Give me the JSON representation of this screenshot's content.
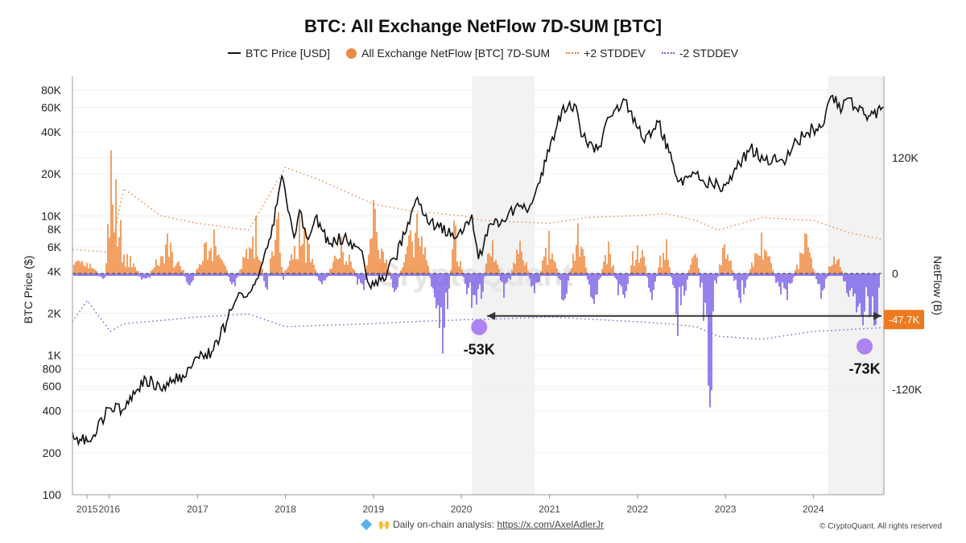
{
  "chart_data": {
    "type": "line",
    "title": "BTC: All Exchange NetFlow 7D-SUM [BTC]",
    "y_left_label": "BTC Price ($)",
    "y_right_label": "NetFlow (B)",
    "y_left_scale": "log",
    "y_left_range": [
      100,
      100000
    ],
    "y_right_range": [
      -200000,
      180000
    ],
    "x_range": [
      "2015-08-01",
      "2024-10-20"
    ],
    "y_left_ticks": [
      "80K",
      "60K",
      "40K",
      "20K",
      "10K",
      "8K",
      "6K",
      "4K",
      "2K",
      "1K",
      "800",
      "600",
      "400",
      "200",
      "100"
    ],
    "y_left_tick_values": [
      80000,
      60000,
      40000,
      20000,
      10000,
      8000,
      6000,
      4000,
      2000,
      1000,
      800,
      600,
      400,
      200,
      100
    ],
    "y_right_ticks": [
      "120K",
      "0",
      "-120K"
    ],
    "y_right_tick_values": [
      120000,
      0,
      -120000
    ],
    "x_ticks": [
      "2015",
      "2016",
      "2017",
      "2018",
      "2019",
      "2020",
      "2021",
      "2022",
      "2023",
      "2024"
    ],
    "x_tick_dates": [
      "2015-10-01",
      "2016-01-01",
      "2017-01-01",
      "2018-01-01",
      "2019-01-01",
      "2020-01-01",
      "2021-01-01",
      "2022-01-01",
      "2023-01-01",
      "2024-01-01"
    ],
    "grid": true,
    "legend_position": "top",
    "series": [
      {
        "name": "BTC Price [USD]",
        "type": "line",
        "axis": "left",
        "color": "#111111",
        "x": [
          "2015-08-01",
          "2015-09-01",
          "2015-10-15",
          "2016-01-01",
          "2016-03-01",
          "2016-06-01",
          "2016-08-01",
          "2016-11-01",
          "2017-01-01",
          "2017-03-01",
          "2017-05-01",
          "2017-06-15",
          "2017-08-01",
          "2017-09-15",
          "2017-11-01",
          "2017-12-17",
          "2018-02-06",
          "2018-03-01",
          "2018-04-06",
          "2018-05-05",
          "2018-07-01",
          "2018-09-01",
          "2018-11-15",
          "2018-12-15",
          "2019-02-01",
          "2019-04-02",
          "2019-06-26",
          "2019-08-01",
          "2019-10-01",
          "2019-12-15",
          "2020-02-14",
          "2020-03-12",
          "2020-05-01",
          "2020-07-01",
          "2020-08-15",
          "2020-10-01",
          "2020-11-15",
          "2020-12-31",
          "2021-02-21",
          "2021-04-14",
          "2021-05-20",
          "2021-07-20",
          "2021-09-07",
          "2021-11-10",
          "2022-01-24",
          "2022-03-29",
          "2022-05-12",
          "2022-06-18",
          "2022-09-01",
          "2022-11-10",
          "2023-01-01",
          "2023-03-01",
          "2023-04-14",
          "2023-06-15",
          "2023-09-11",
          "2023-10-24",
          "2023-12-31",
          "2024-02-01",
          "2024-03-14",
          "2024-05-01",
          "2024-06-01",
          "2024-07-05",
          "2024-08-05",
          "2024-09-06",
          "2024-10-20"
        ],
        "y": [
          280,
          250,
          240,
          420,
          410,
          680,
          570,
          720,
          970,
          1060,
          1700,
          2600,
          2800,
          3900,
          7000,
          19500,
          7000,
          11000,
          6800,
          9800,
          6300,
          7000,
          5600,
          3200,
          3450,
          4900,
          13000,
          10000,
          8300,
          7100,
          10200,
          4900,
          8800,
          9100,
          11800,
          10600,
          17000,
          29000,
          57000,
          63500,
          37000,
          29800,
          51000,
          68000,
          35000,
          47000,
          28500,
          17600,
          20000,
          16500,
          16600,
          23500,
          30400,
          25000,
          25100,
          34500,
          42300,
          43000,
          72000,
          59000,
          70000,
          56000,
          53000,
          54000,
          60000
        ]
      },
      {
        "name": "All Exchange NetFlow [BTC] 7D-SUM",
        "type": "area",
        "axis": "right",
        "color_positive": "#f0883d",
        "color_negative": "#7b61e8",
        "x": [
          "2015-10-01",
          "2015-12-15",
          "2016-01-05",
          "2016-03-01",
          "2016-06-01",
          "2016-09-01",
          "2016-12-01",
          "2017-03-01",
          "2017-06-01",
          "2017-09-01",
          "2017-10-15",
          "2017-12-01",
          "2017-12-20",
          "2018-03-01",
          "2018-06-01",
          "2018-09-01",
          "2018-11-20",
          "2019-01-01",
          "2019-04-01",
          "2019-07-01",
          "2019-10-25",
          "2019-12-01",
          "2020-02-01",
          "2020-03-15",
          "2020-05-01",
          "2020-07-01",
          "2020-09-01",
          "2020-11-01",
          "2021-01-01",
          "2021-03-01",
          "2021-05-01",
          "2021-07-01",
          "2021-09-01",
          "2021-11-01",
          "2022-01-01",
          "2022-03-01",
          "2022-05-01",
          "2022-06-15",
          "2022-09-01",
          "2022-11-08",
          "2022-11-12",
          "2023-01-01",
          "2023-03-01",
          "2023-06-01",
          "2023-09-01",
          "2023-12-01",
          "2024-02-01",
          "2024-04-01",
          "2024-06-01",
          "2024-08-01",
          "2024-10-01"
        ],
        "y": [
          12000,
          -8000,
          155000,
          30000,
          -12000,
          42000,
          -15000,
          52000,
          -18000,
          65000,
          -30000,
          115000,
          -10000,
          70000,
          -20000,
          45000,
          -35000,
          80000,
          -25000,
          75000,
          -95000,
          60000,
          -40000,
          -53000,
          50000,
          -30000,
          45000,
          -35000,
          55000,
          -40000,
          60000,
          -45000,
          40000,
          -50000,
          55000,
          -30000,
          52000,
          -70000,
          45000,
          -185000,
          -30000,
          42000,
          -35000,
          48000,
          -40000,
          45000,
          -30000,
          32000,
          -35000,
          -73000,
          -47700
        ]
      },
      {
        "name": "+2 STDDEV",
        "type": "dotted",
        "axis": "right",
        "color": "#e8824a",
        "x": [
          "2015-08-01",
          "2016-01-05",
          "2016-03-01",
          "2016-08-01",
          "2017-01-01",
          "2017-08-01",
          "2018-01-01",
          "2018-06-01",
          "2019-01-01",
          "2019-06-01",
          "2020-01-01",
          "2020-04-01",
          "2021-01-01",
          "2021-06-01",
          "2022-01-01",
          "2022-05-01",
          "2022-09-01",
          "2022-12-01",
          "2023-06-01",
          "2024-01-01",
          "2024-06-01",
          "2024-10-20"
        ],
        "y": [
          25000,
          22000,
          88000,
          60000,
          52000,
          45000,
          110000,
          96000,
          72000,
          65000,
          60000,
          55000,
          52000,
          58000,
          60000,
          62000,
          55000,
          45000,
          58000,
          55000,
          42000,
          35000
        ]
      },
      {
        "name": "-2 STDDEV",
        "type": "dotted",
        "axis": "right",
        "color": "#7060d8",
        "x": [
          "2015-08-01",
          "2015-10-01",
          "2016-01-05",
          "2016-03-01",
          "2016-09-01",
          "2017-01-01",
          "2017-08-01",
          "2018-01-01",
          "2019-01-01",
          "2019-06-01",
          "2020-01-01",
          "2020-06-01",
          "2021-01-01",
          "2022-01-01",
          "2022-05-01",
          "2022-09-01",
          "2022-12-01",
          "2023-06-01",
          "2024-01-01",
          "2024-06-01",
          "2024-10-20"
        ],
        "y": [
          -50000,
          -28000,
          -60000,
          -52000,
          -48000,
          -45000,
          -42000,
          -55000,
          -52000,
          -50000,
          -48000,
          -47000,
          -45000,
          -50000,
          -52000,
          -55000,
          -65000,
          -68000,
          -60000,
          -58000,
          -56000
        ]
      }
    ],
    "shaded_periods": [
      [
        "2020-02-15",
        "2020-11-01"
      ],
      [
        "2024-03-01",
        "2024-10-20"
      ]
    ],
    "annotations": [
      {
        "text": "-53K",
        "date": "2020-03-15",
        "value": -53000,
        "color": "#a070f0"
      },
      {
        "text": "-73K",
        "date": "2024-08-01",
        "value": -73000,
        "color": "#a070f0"
      },
      {
        "text": "-47.7K",
        "date": "2024-10-20",
        "value": -47700,
        "color": "#ee7a1f",
        "kind": "current-value-badge"
      }
    ],
    "arrow": {
      "from": "2020-03-15",
      "to": "2024-10-10",
      "value": -44000
    }
  },
  "legend": {
    "price": "BTC Price [USD]",
    "netflow": "All Exchange NetFlow [BTC] 7D-SUM",
    "plus2": "+2 STDDEV",
    "minus2": "-2 STDDEV"
  },
  "footer": {
    "text": "Daily on-chain analysis:",
    "link": "https://x.com/AxelAdlerJr",
    "copyright": "© CryptoQuant. All rights reserved"
  },
  "watermark": "CryptoQuant"
}
